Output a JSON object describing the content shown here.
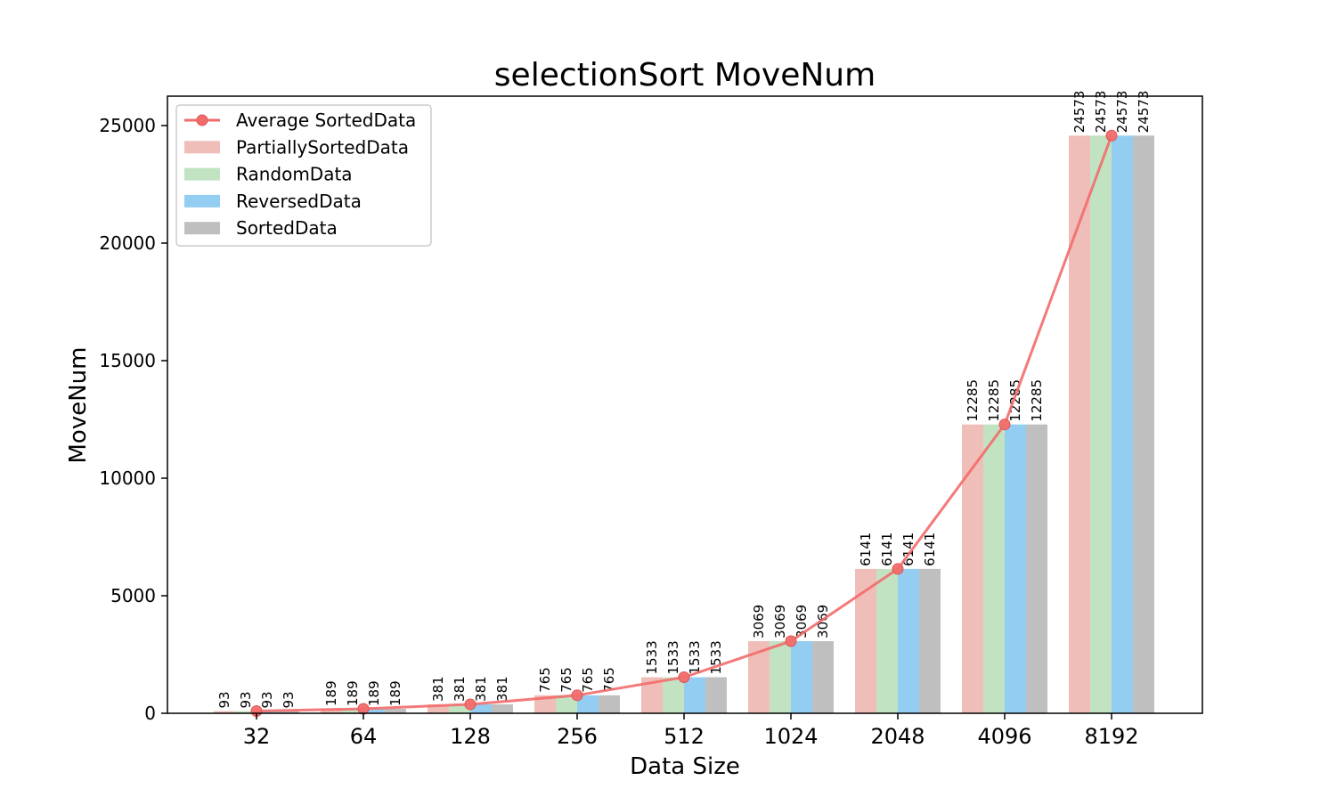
{
  "chart_data": {
    "type": "bar",
    "title": "selectionSort MoveNum",
    "xlabel": "Data Size",
    "ylabel": "MoveNum",
    "ylim": [
      0,
      26250
    ],
    "yticks": [
      0,
      5000,
      10000,
      15000,
      20000,
      25000
    ],
    "categories": [
      "32",
      "64",
      "128",
      "256",
      "512",
      "1024",
      "2048",
      "4096",
      "8192"
    ],
    "series": [
      {
        "name": "PartiallySortedData",
        "color": "#f0beb8",
        "values": [
          93,
          189,
          381,
          765,
          1533,
          3069,
          6141,
          12285,
          24573
        ]
      },
      {
        "name": "RandomData",
        "color": "#c2e3c2",
        "values": [
          93,
          189,
          381,
          765,
          1533,
          3069,
          6141,
          12285,
          24573
        ]
      },
      {
        "name": "ReversedData",
        "color": "#94cdf2",
        "values": [
          93,
          189,
          381,
          765,
          1533,
          3069,
          6141,
          12285,
          24573
        ]
      },
      {
        "name": "SortedData",
        "color": "#bfbfbf",
        "values": [
          93,
          189,
          381,
          765,
          1533,
          3069,
          6141,
          12285,
          24573
        ]
      }
    ],
    "line": {
      "name": "Average SortedData",
      "color": "#f26b6b",
      "values": [
        93,
        189,
        381,
        765,
        1533,
        3069,
        6141,
        12285,
        24573
      ]
    },
    "legend_position": "top-left",
    "grid": false
  }
}
